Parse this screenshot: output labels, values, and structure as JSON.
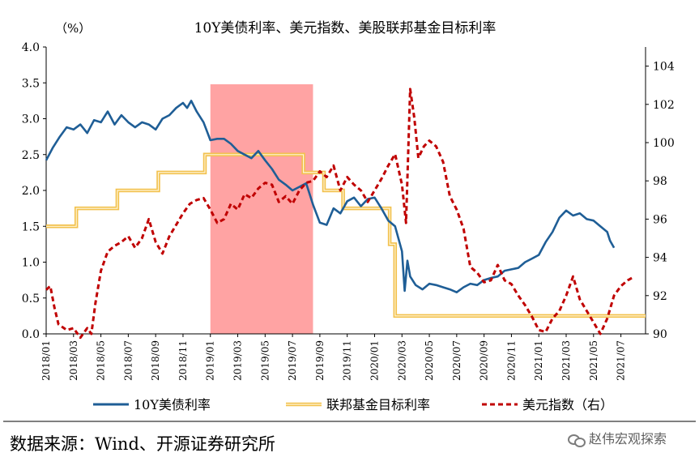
{
  "chart_data": {
    "type": "line",
    "title": "10Y美债利率、美元指数、美股联邦基金目标利率",
    "left_unit": "（%）",
    "left_axis": {
      "min": 0.0,
      "max": 4.0,
      "ticks": [
        "0.0",
        "0.5",
        "1.0",
        "1.5",
        "2.0",
        "2.5",
        "3.0",
        "3.5",
        "4.0"
      ]
    },
    "right_axis": {
      "label": "美元指数（右）",
      "min": 90,
      "max": 105,
      "ticks": [
        "90",
        "92",
        "94",
        "96",
        "98",
        "100",
        "102",
        "104"
      ]
    },
    "x_ticks": [
      "2018/01",
      "2018/03",
      "2018/05",
      "2018/07",
      "2018/09",
      "2018/11",
      "2019/01",
      "2019/03",
      "2019/05",
      "2019/07",
      "2019/09",
      "2019/11",
      "2020/01",
      "2020/03",
      "2020/05",
      "2020/07",
      "2020/09",
      "2020/11",
      "2021/01",
      "2021/03",
      "2021/05",
      "2021/07"
    ],
    "highlight_period": {
      "start_month": 12,
      "end_month": 19.5
    },
    "series": [
      {
        "name": "10Y美债利率",
        "axis": "left",
        "color": "#1F5E96",
        "style": "solid",
        "points": [
          [
            0,
            2.42
          ],
          [
            0.5,
            2.6
          ],
          [
            1,
            2.75
          ],
          [
            1.5,
            2.88
          ],
          [
            2,
            2.85
          ],
          [
            2.5,
            2.92
          ],
          [
            3,
            2.8
          ],
          [
            3.5,
            2.98
          ],
          [
            4,
            2.95
          ],
          [
            4.5,
            3.1
          ],
          [
            5,
            2.92
          ],
          [
            5.5,
            3.05
          ],
          [
            6,
            2.95
          ],
          [
            6.5,
            2.88
          ],
          [
            7,
            2.95
          ],
          [
            7.5,
            2.92
          ],
          [
            8,
            2.85
          ],
          [
            8.5,
            3.0
          ],
          [
            9,
            3.05
          ],
          [
            9.5,
            3.15
          ],
          [
            10,
            3.22
          ],
          [
            10.3,
            3.15
          ],
          [
            10.6,
            3.25
          ],
          [
            11,
            3.1
          ],
          [
            11.5,
            2.95
          ],
          [
            12,
            2.7
          ],
          [
            12.5,
            2.72
          ],
          [
            13,
            2.72
          ],
          [
            13.5,
            2.65
          ],
          [
            14,
            2.55
          ],
          [
            14.5,
            2.5
          ],
          [
            15,
            2.45
          ],
          [
            15.5,
            2.55
          ],
          [
            16,
            2.42
          ],
          [
            16.5,
            2.3
          ],
          [
            17,
            2.15
          ],
          [
            17.5,
            2.08
          ],
          [
            18,
            2.0
          ],
          [
            18.5,
            2.05
          ],
          [
            19,
            2.1
          ],
          [
            19.5,
            1.8
          ],
          [
            20,
            1.55
          ],
          [
            20.5,
            1.52
          ],
          [
            21,
            1.75
          ],
          [
            21.5,
            1.68
          ],
          [
            22,
            1.85
          ],
          [
            22.5,
            1.9
          ],
          [
            23,
            1.78
          ],
          [
            23.5,
            1.88
          ],
          [
            24,
            1.9
          ],
          [
            24.5,
            1.75
          ],
          [
            25,
            1.58
          ],
          [
            25.5,
            1.5
          ],
          [
            26,
            1.15
          ],
          [
            26.2,
            0.6
          ],
          [
            26.4,
            1.02
          ],
          [
            26.6,
            0.8
          ],
          [
            27,
            0.68
          ],
          [
            27.5,
            0.62
          ],
          [
            28,
            0.7
          ],
          [
            28.5,
            0.68
          ],
          [
            29,
            0.65
          ],
          [
            29.5,
            0.62
          ],
          [
            30,
            0.58
          ],
          [
            30.5,
            0.65
          ],
          [
            31,
            0.7
          ],
          [
            31.5,
            0.68
          ],
          [
            32,
            0.75
          ],
          [
            32.5,
            0.78
          ],
          [
            33,
            0.8
          ],
          [
            33.5,
            0.88
          ],
          [
            34,
            0.9
          ],
          [
            34.5,
            0.92
          ],
          [
            35,
            1.0
          ],
          [
            35.5,
            1.05
          ],
          [
            36,
            1.1
          ],
          [
            36.5,
            1.28
          ],
          [
            37,
            1.42
          ],
          [
            37.5,
            1.62
          ],
          [
            38,
            1.72
          ],
          [
            38.5,
            1.65
          ],
          [
            39,
            1.68
          ],
          [
            39.5,
            1.6
          ],
          [
            40,
            1.58
          ],
          [
            40.5,
            1.5
          ],
          [
            41,
            1.42
          ],
          [
            41.2,
            1.3
          ],
          [
            41.5,
            1.2
          ]
        ]
      },
      {
        "name": "联邦基金目标利率",
        "axis": "left",
        "color": "#F2C14E",
        "style": "double",
        "points": [
          [
            0,
            1.5
          ],
          [
            2.2,
            1.5
          ],
          [
            2.2,
            1.75
          ],
          [
            5.2,
            1.75
          ],
          [
            5.2,
            2.0
          ],
          [
            8.2,
            2.0
          ],
          [
            8.2,
            2.25
          ],
          [
            11.6,
            2.25
          ],
          [
            11.6,
            2.5
          ],
          [
            18.8,
            2.5
          ],
          [
            18.8,
            2.25
          ],
          [
            20.3,
            2.25
          ],
          [
            20.3,
            2.0
          ],
          [
            21.7,
            2.0
          ],
          [
            21.7,
            1.75
          ],
          [
            25.1,
            1.75
          ],
          [
            25.1,
            1.25
          ],
          [
            25.5,
            1.25
          ],
          [
            25.5,
            0.25
          ],
          [
            43.8,
            0.25
          ]
        ]
      },
      {
        "name": "美元指数（右）",
        "axis": "right",
        "color": "#C00000",
        "style": "dashed",
        "points": [
          [
            0,
            92.3
          ],
          [
            0.3,
            92.5
          ],
          [
            0.6,
            91.4
          ],
          [
            0.9,
            90.5
          ],
          [
            1.5,
            90.2
          ],
          [
            2,
            90.3
          ],
          [
            2.5,
            89.8
          ],
          [
            3,
            90.3
          ],
          [
            3.3,
            90.0
          ],
          [
            3.6,
            91.6
          ],
          [
            4,
            93.3
          ],
          [
            4.5,
            94.3
          ],
          [
            5,
            94.6
          ],
          [
            5.5,
            94.8
          ],
          [
            6,
            95.1
          ],
          [
            6.5,
            94.5
          ],
          [
            7,
            95.0
          ],
          [
            7.5,
            96.0
          ],
          [
            8,
            94.8
          ],
          [
            8.5,
            94.2
          ],
          [
            9,
            95.1
          ],
          [
            9.5,
            95.7
          ],
          [
            10,
            96.3
          ],
          [
            10.5,
            96.8
          ],
          [
            11,
            97.0
          ],
          [
            11.5,
            97.1
          ],
          [
            12,
            96.5
          ],
          [
            12.5,
            95.8
          ],
          [
            13,
            96.0
          ],
          [
            13.5,
            96.8
          ],
          [
            14,
            96.5
          ],
          [
            14.5,
            97.3
          ],
          [
            15,
            97.1
          ],
          [
            15.5,
            97.6
          ],
          [
            16,
            97.9
          ],
          [
            16.5,
            97.8
          ],
          [
            17,
            96.9
          ],
          [
            17.5,
            97.2
          ],
          [
            18,
            96.8
          ],
          [
            18.5,
            97.5
          ],
          [
            19,
            97.9
          ],
          [
            19.5,
            98.0
          ],
          [
            20,
            98.5
          ],
          [
            20.5,
            98.2
          ],
          [
            21,
            98.8
          ],
          [
            21.5,
            97.5
          ],
          [
            22,
            98.2
          ],
          [
            22.5,
            97.8
          ],
          [
            23,
            97.5
          ],
          [
            23.5,
            96.9
          ],
          [
            24,
            97.5
          ],
          [
            24.5,
            98.1
          ],
          [
            25,
            98.8
          ],
          [
            25.5,
            99.4
          ],
          [
            26,
            97.8
          ],
          [
            26.3,
            95.8
          ],
          [
            26.6,
            102.8
          ],
          [
            26.9,
            101.3
          ],
          [
            27.2,
            99.2
          ],
          [
            27.6,
            99.8
          ],
          [
            28,
            100.1
          ],
          [
            28.5,
            99.8
          ],
          [
            29,
            99.0
          ],
          [
            29.5,
            97.2
          ],
          [
            30,
            96.5
          ],
          [
            30.5,
            95.5
          ],
          [
            31,
            93.5
          ],
          [
            31.5,
            93.2
          ],
          [
            32,
            92.7
          ],
          [
            32.5,
            92.8
          ],
          [
            33,
            93.6
          ],
          [
            33.5,
            92.8
          ],
          [
            34,
            92.6
          ],
          [
            34.5,
            92.0
          ],
          [
            35,
            91.5
          ],
          [
            35.5,
            90.9
          ],
          [
            36,
            90.2
          ],
          [
            36.5,
            90.1
          ],
          [
            37,
            90.8
          ],
          [
            37.5,
            91.2
          ],
          [
            38,
            92.0
          ],
          [
            38.5,
            93.0
          ],
          [
            39,
            91.8
          ],
          [
            39.5,
            91.2
          ],
          [
            40,
            90.6
          ],
          [
            40.5,
            90.0
          ],
          [
            41,
            90.8
          ],
          [
            41.5,
            92.0
          ],
          [
            42,
            92.5
          ],
          [
            42.5,
            92.8
          ],
          [
            43,
            93.0
          ]
        ]
      }
    ],
    "legend": [
      "10Y美债利率",
      "联邦基金目标利率",
      "美元指数（右）"
    ]
  },
  "footer": {
    "source": "数据来源：Wind、开源证券研究所",
    "watermark": "赵伟宏观探索"
  }
}
